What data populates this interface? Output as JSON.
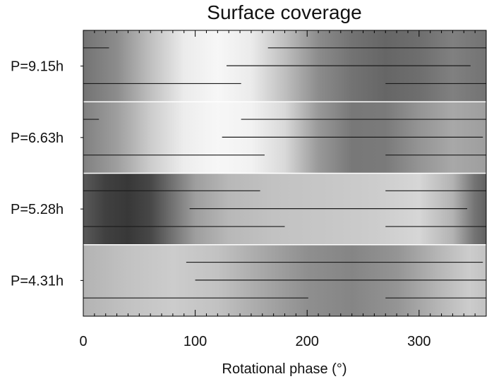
{
  "chart_data": {
    "type": "heatmap",
    "title": "Surface coverage",
    "xlabel": "Rotational phase (°)",
    "xlim": [
      0,
      360
    ],
    "xticks": [
      0,
      100,
      200,
      300
    ],
    "grid": false,
    "rows": [
      {
        "name": "P=9.15h",
        "shading": [
          [
            0,
            0.45
          ],
          [
            30,
            0.55
          ],
          [
            60,
            0.75
          ],
          [
            90,
            0.92
          ],
          [
            120,
            0.97
          ],
          [
            150,
            0.92
          ],
          [
            180,
            0.75
          ],
          [
            210,
            0.55
          ],
          [
            240,
            0.45
          ],
          [
            270,
            0.4
          ],
          [
            300,
            0.43
          ],
          [
            330,
            0.5
          ],
          [
            360,
            0.45
          ]
        ],
        "segments": [
          [
            [
              0,
              23
            ],
            [
              165,
              360
            ]
          ],
          [
            [
              128,
              346
            ]
          ],
          [
            [
              0,
              141
            ],
            [
              270,
              360
            ]
          ]
        ]
      },
      {
        "name": "P=6.63h",
        "shading": [
          [
            0,
            0.5
          ],
          [
            30,
            0.62
          ],
          [
            60,
            0.8
          ],
          [
            90,
            0.93
          ],
          [
            120,
            0.97
          ],
          [
            150,
            0.95
          ],
          [
            180,
            0.85
          ],
          [
            210,
            0.6
          ],
          [
            240,
            0.47
          ],
          [
            270,
            0.48
          ],
          [
            300,
            0.58
          ],
          [
            330,
            0.66
          ],
          [
            360,
            0.62
          ]
        ],
        "segments": [
          [
            [
              0,
              14
            ],
            [
              141,
              360
            ]
          ],
          [
            [
              124,
              357
            ]
          ],
          [
            [
              0,
              162
            ],
            [
              270,
              360
            ]
          ]
        ]
      },
      {
        "name": "P=5.28h",
        "shading": [
          [
            0,
            0.35
          ],
          [
            20,
            0.25
          ],
          [
            40,
            0.22
          ],
          [
            60,
            0.28
          ],
          [
            80,
            0.45
          ],
          [
            100,
            0.62
          ],
          [
            130,
            0.72
          ],
          [
            170,
            0.76
          ],
          [
            220,
            0.78
          ],
          [
            260,
            0.8
          ],
          [
            300,
            0.84
          ],
          [
            330,
            0.7
          ],
          [
            350,
            0.45
          ],
          [
            360,
            0.38
          ]
        ],
        "segments": [
          [
            [
              0,
              158
            ],
            [
              270,
              360
            ]
          ],
          [
            [
              95,
              343
            ]
          ],
          [
            [
              0,
              180
            ],
            [
              270,
              360
            ]
          ]
        ]
      },
      {
        "name": "P=4.31h",
        "shading": [
          [
            0,
            0.7
          ],
          [
            40,
            0.76
          ],
          [
            80,
            0.8
          ],
          [
            120,
            0.76
          ],
          [
            160,
            0.66
          ],
          [
            200,
            0.56
          ],
          [
            240,
            0.52
          ],
          [
            280,
            0.58
          ],
          [
            320,
            0.72
          ],
          [
            345,
            0.8
          ],
          [
            360,
            0.76
          ]
        ],
        "segments": [
          [
            [
              92,
              357
            ]
          ],
          [
            [
              100,
              360
            ]
          ],
          [
            [
              0,
              201
            ],
            [
              270,
              360
            ]
          ]
        ]
      }
    ]
  }
}
